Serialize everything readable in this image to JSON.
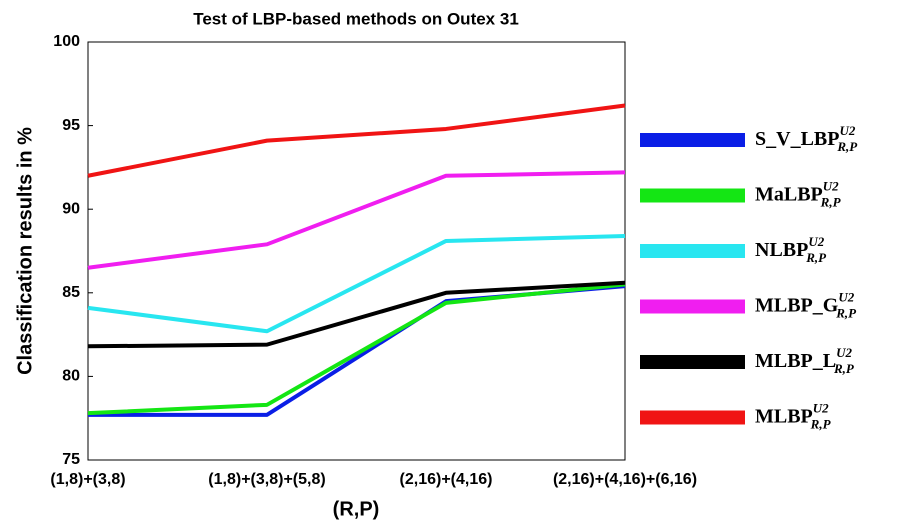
{
  "chart_data": {
    "type": "line",
    "title": "Test of LBP-based methods on Outex 31",
    "x_label": "(R,P)",
    "y_label": "Classification results in %",
    "categories": [
      "(1,8)+(3,8)",
      "(1,8)+(3,8)+(5,8)",
      "(2,16)+(4,16)",
      "(2,16)+(4,16)+(6,16)"
    ],
    "ylim": [
      75,
      100
    ],
    "yticks": [
      75,
      80,
      85,
      90,
      95,
      100
    ],
    "grid": false,
    "legend": "right",
    "series": [
      {
        "name": "S_V_LBP",
        "superscript": "U2",
        "subscript": "R,P",
        "color": "#0a1ee6",
        "values": [
          77.7,
          77.7,
          84.5,
          85.4
        ]
      },
      {
        "name": "MaLBP",
        "superscript": "U2",
        "subscript": "R,P",
        "color": "#14e614",
        "values": [
          77.8,
          78.3,
          84.4,
          85.5
        ]
      },
      {
        "name": "NLBP",
        "superscript": "U2",
        "subscript": "R,P",
        "color": "#28e6f0",
        "values": [
          84.1,
          82.7,
          88.1,
          88.4
        ]
      },
      {
        "name": "MLBP_G",
        "superscript": "U2",
        "subscript": "R,P",
        "color": "#f01ef0",
        "values": [
          86.5,
          87.9,
          92.0,
          92.2
        ]
      },
      {
        "name": "MLBP_L",
        "superscript": "U2",
        "subscript": "R,P",
        "color": "#000000",
        "values": [
          81.8,
          81.9,
          85.0,
          85.6
        ]
      },
      {
        "name": "MLBP",
        "superscript": "U2",
        "subscript": "R,P",
        "color": "#f01414",
        "values": [
          92.0,
          94.1,
          94.8,
          96.2
        ]
      }
    ]
  }
}
